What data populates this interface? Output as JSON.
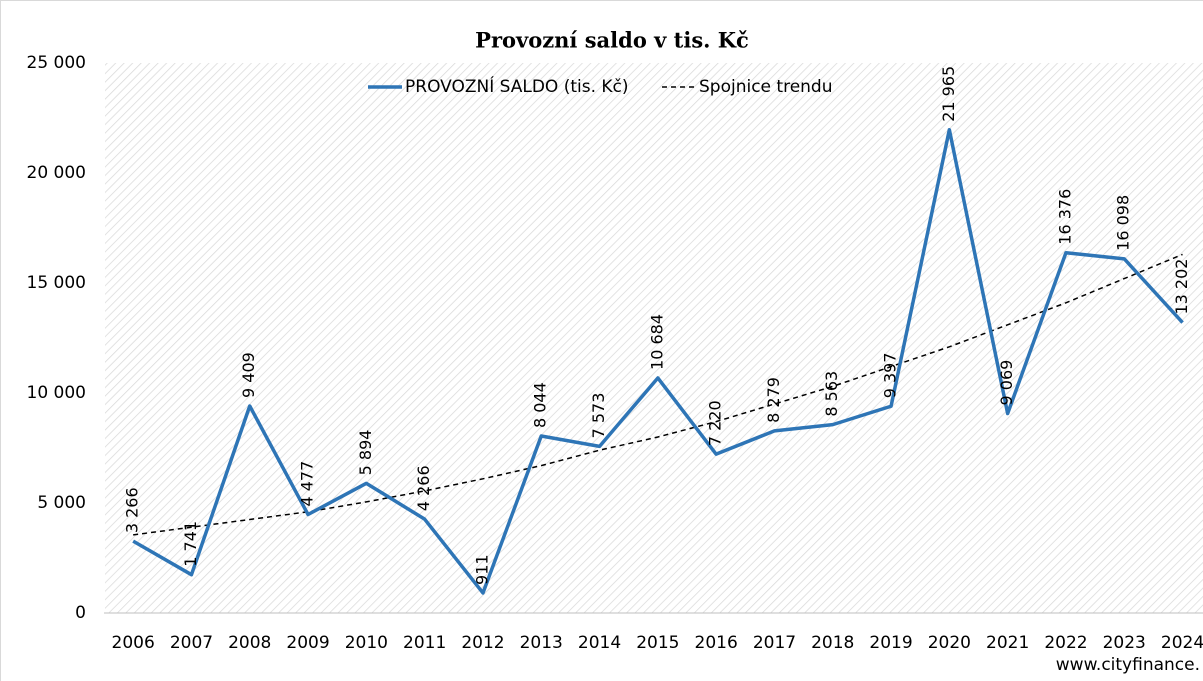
{
  "chart_data": {
    "type": "line",
    "title": "Provozní saldo v tis. Kč",
    "categories": [
      "2006",
      "2007",
      "2008",
      "2009",
      "2010",
      "2011",
      "2012",
      "2013",
      "2014",
      "2015",
      "2016",
      "2017",
      "2018",
      "2019",
      "2020",
      "2021",
      "2022",
      "2023",
      "2024"
    ],
    "series": [
      {
        "name": "PROVOZNÍ SALDO (tis. Kč)",
        "color": "#2e75b6",
        "values": [
          3266,
          1741,
          9409,
          4477,
          5894,
          4266,
          911,
          8044,
          7573,
          10684,
          7220,
          8279,
          8563,
          9397,
          21965,
          9069,
          16376,
          16098,
          13202
        ],
        "value_labels": [
          "3 266",
          "1 741",
          "9 409",
          "4 477",
          "5 894",
          "4 266",
          "911",
          "8 044",
          "7 573",
          "10 684",
          "7 220",
          "8 279",
          "8 563",
          "9 397",
          "21 965",
          "9 069",
          "16 376",
          "16 098",
          "13 202"
        ]
      },
      {
        "name": "Spojnice trendu",
        "color": "#000000",
        "dashed": true,
        "values": [
          3550,
          3900,
          4250,
          4600,
          5050,
          5550,
          6100,
          6700,
          7400,
          8000,
          8700,
          9500,
          10300,
          11200,
          12100,
          13100,
          14100,
          15200,
          16300
        ]
      }
    ],
    "ylim": [
      0,
      25000
    ],
    "yticks": [
      0,
      {
        "value": 5000,
        "label": "5 000"
      },
      {
        "value": 10000,
        "label": "10 000"
      },
      {
        "value": 15000,
        "label": "15 000"
      },
      {
        "value": 20000,
        "label": "20 000"
      },
      {
        "value": 25000,
        "label": "25 000"
      }
    ],
    "grid": false,
    "legend": "top",
    "source": "www.cityfinance."
  }
}
